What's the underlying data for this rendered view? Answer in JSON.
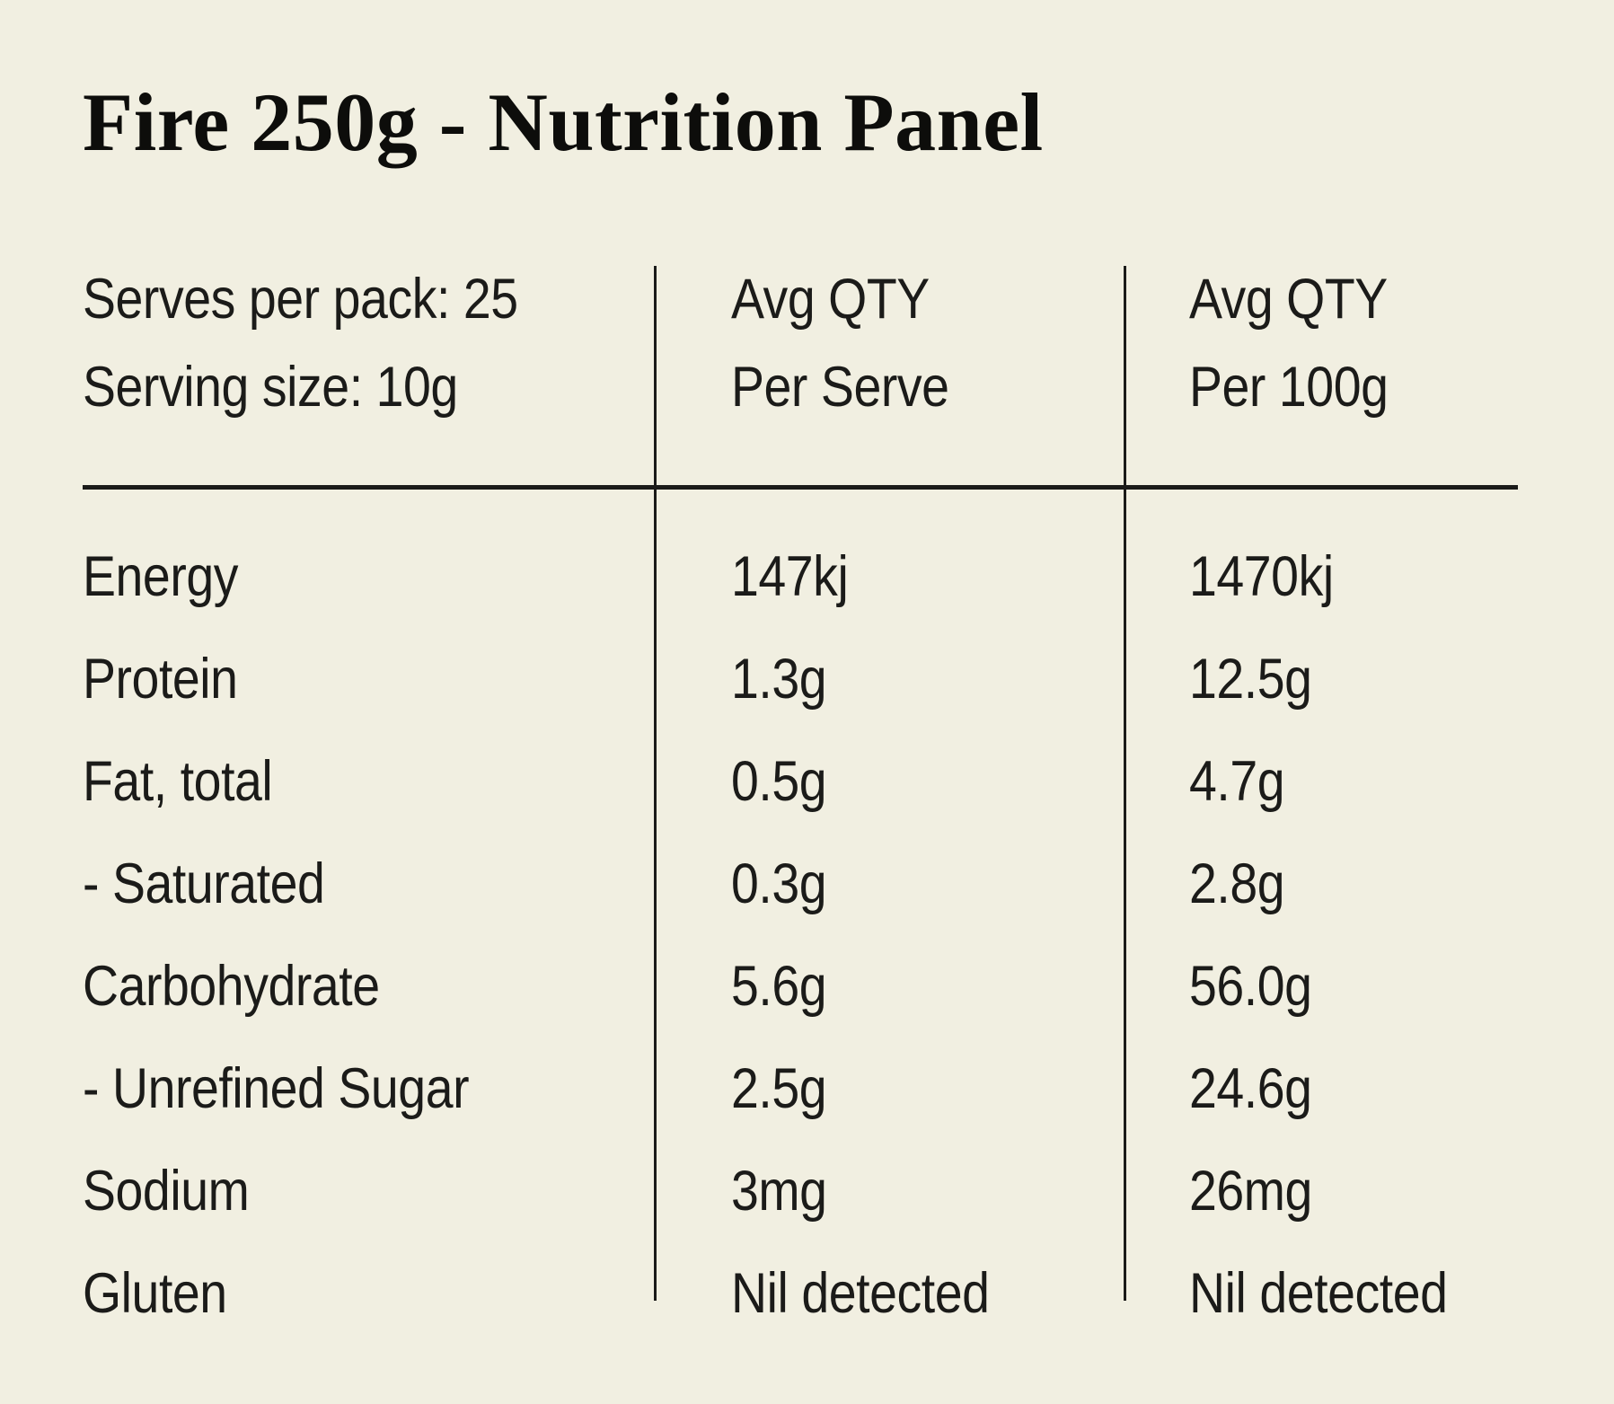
{
  "title": "Fire 250g - Nutrition Panel",
  "colors": {
    "background": "#F1EFE1",
    "text": "#1B1B19",
    "title_text": "#0D0D0B",
    "rule": "#1B1B19"
  },
  "table": {
    "header": {
      "pack_info": [
        "Serves per pack: 25",
        "Serving size: 10g"
      ],
      "per_serve_col": [
        "Avg QTY",
        "Per Serve"
      ],
      "per_100g_col": [
        "Avg QTY",
        "Per 100g"
      ]
    },
    "rows": [
      {
        "label": "Energy",
        "per_serve": "147kj",
        "per_100g": "1470kj"
      },
      {
        "label": "Protein",
        "per_serve": "1.3g",
        "per_100g": "12.5g"
      },
      {
        "label": "Fat, total",
        "per_serve": "0.5g",
        "per_100g": "4.7g"
      },
      {
        "label": "- Saturated",
        "per_serve": "0.3g",
        "per_100g": "2.8g"
      },
      {
        "label": "Carbohydrate",
        "per_serve": "5.6g",
        "per_100g": "56.0g"
      },
      {
        "label": "- Unrefined Sugar",
        "per_serve": "2.5g",
        "per_100g": "24.6g"
      },
      {
        "label": "Sodium",
        "per_serve": "3mg",
        "per_100g": "26mg"
      },
      {
        "label": "Gluten",
        "per_serve": "Nil detected",
        "per_100g": "Nil detected"
      }
    ]
  }
}
